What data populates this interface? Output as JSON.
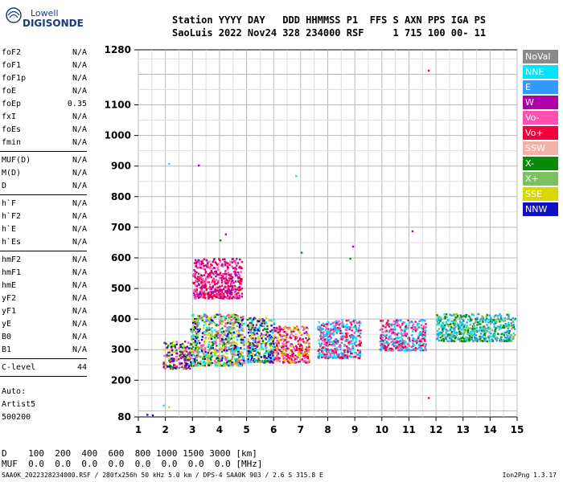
{
  "logo": {
    "line1": "Lowell",
    "line2": "DIGISONDE"
  },
  "header": {
    "labels_line": "Station YYYY DAY   DDD HHMMSS P1  FFS S AXN PPS IGA PS",
    "values_line": "SaoLuis 2022 Nov24 328 234000 RSF     1 715 100 00- 11"
  },
  "params": [
    {
      "name": "foF2",
      "value": "N/A"
    },
    {
      "name": "foF1",
      "value": "N/A"
    },
    {
      "name": "foF1p",
      "value": "N/A"
    },
    {
      "name": "foE",
      "value": "N/A"
    },
    {
      "name": "foEp",
      "value": "0.35"
    },
    {
      "name": "fxI",
      "value": "N/A"
    },
    {
      "name": "foEs",
      "value": "N/A"
    },
    {
      "name": "fmin",
      "value": "N/A"
    },
    {
      "name": "MUF(D)",
      "value": "N/A"
    },
    {
      "name": "M(D)",
      "value": "N/A"
    },
    {
      "name": "D",
      "value": "N/A"
    },
    {
      "name": "h`F",
      "value": "N/A"
    },
    {
      "name": "h`F2",
      "value": "N/A"
    },
    {
      "name": "h`E",
      "value": "N/A"
    },
    {
      "name": "h`Es",
      "value": "N/A"
    },
    {
      "name": "hmF2",
      "value": "N/A"
    },
    {
      "name": "hmF1",
      "value": "N/A"
    },
    {
      "name": "hmE",
      "value": "N/A"
    },
    {
      "name": "yF2",
      "value": "N/A"
    },
    {
      "name": "yF1",
      "value": "N/A"
    },
    {
      "name": "yE",
      "value": "N/A"
    },
    {
      "name": "B0",
      "value": "N/A"
    },
    {
      "name": "B1",
      "value": "N/A"
    },
    {
      "name": "C-level",
      "value": "44"
    }
  ],
  "auto": {
    "line1": "Auto:",
    "line2": "Artist5",
    "line3": "500200"
  },
  "legend": [
    {
      "label": "NoVal",
      "color": "#8a8a8a"
    },
    {
      "label": "NNE",
      "color": "#00e5ff"
    },
    {
      "label": "E",
      "color": "#3399ff"
    },
    {
      "label": "W",
      "color": "#b000a8"
    },
    {
      "label": "Vo-",
      "color": "#ff4fb0"
    },
    {
      "label": "Vo+",
      "color": "#f0003c"
    },
    {
      "label": "SSW",
      "color": "#f4b0a8"
    },
    {
      "label": "X-",
      "color": "#0a8a0a"
    },
    {
      "label": "X+",
      "color": "#7cc060"
    },
    {
      "label": "SSE",
      "color": "#d8d800"
    },
    {
      "label": "NNW",
      "color": "#1010c0"
    }
  ],
  "footer": {
    "d_line": "D    100  200  400  600  800 1000 1500 3000 [km]",
    "muf_line": "MUF  0.0  0.0  0.0  0.0  0.0  0.0  0.0  0.0 [MHz]",
    "file_line": "SAA0K_2022328234000.RSF / 280fx256h 50 kHz 5.0 km / DPS-4 SAA0K 903 / 2.6 S 315.8 E",
    "version": "Ion2Png 1.3.17"
  },
  "chart_data": {
    "type": "scatter",
    "xlim": [
      1,
      15
    ],
    "ylim": [
      80,
      1280
    ],
    "x_ticks": [
      1,
      2,
      3,
      4,
      5,
      6,
      7,
      8,
      9,
      10,
      11,
      12,
      13,
      14,
      15
    ],
    "y_ticks": [
      80,
      200,
      300,
      400,
      500,
      600,
      700,
      800,
      900,
      1000,
      1100,
      1280
    ],
    "grid": true,
    "legend_position": "right",
    "clusters": [
      {
        "x_range": [
          1.9,
          2.9
        ],
        "y_range": [
          240,
          330
        ],
        "colors": [
          "#1010c0",
          "#d8d800",
          "#b000a8",
          "#0a8a0a",
          "#ff4fb0"
        ]
      },
      {
        "x_range": [
          2.9,
          4.9
        ],
        "y_range": [
          250,
          420
        ],
        "colors": [
          "#d8d800",
          "#0a8a0a",
          "#1010c0",
          "#ff4fb0",
          "#00e5ff",
          "#7cc060"
        ]
      },
      {
        "x_range": [
          3.0,
          4.8
        ],
        "y_range": [
          470,
          600
        ],
        "colors": [
          "#b000a8",
          "#ff4fb0",
          "#f0003c"
        ]
      },
      {
        "x_range": [
          5.0,
          6.0
        ],
        "y_range": [
          260,
          410
        ],
        "colors": [
          "#1010c0",
          "#d8d800",
          "#0a8a0a",
          "#00e5ff",
          "#b000a8"
        ]
      },
      {
        "x_range": [
          6.0,
          7.3
        ],
        "y_range": [
          260,
          380
        ],
        "colors": [
          "#ff4fb0",
          "#f0003c",
          "#b000a8",
          "#d8d800"
        ]
      },
      {
        "x_range": [
          7.6,
          9.2
        ],
        "y_range": [
          275,
          400
        ],
        "colors": [
          "#ff4fb0",
          "#f0003c",
          "#00e5ff",
          "#3399ff"
        ]
      },
      {
        "x_range": [
          9.9,
          11.6
        ],
        "y_range": [
          300,
          400
        ],
        "colors": [
          "#f0003c",
          "#00e5ff",
          "#3399ff",
          "#ff4fb0"
        ]
      },
      {
        "x_range": [
          12.0,
          14.9
        ],
        "y_range": [
          330,
          420
        ],
        "colors": [
          "#00e5ff",
          "#3399ff",
          "#7cc060",
          "#0a8a0a"
        ]
      }
    ],
    "outliers": [
      {
        "x": 1.3,
        "y": 90,
        "color": "#1010c0"
      },
      {
        "x": 1.5,
        "y": 88,
        "color": "#1010c0"
      },
      {
        "x": 1.9,
        "y": 120,
        "color": "#00e5ff"
      },
      {
        "x": 2.1,
        "y": 115,
        "color": "#d8d800"
      },
      {
        "x": 2.1,
        "y": 910,
        "color": "#00e5ff"
      },
      {
        "x": 3.2,
        "y": 905,
        "color": "#b000a8"
      },
      {
        "x": 4.2,
        "y": 680,
        "color": "#b000a8"
      },
      {
        "x": 4.0,
        "y": 660,
        "color": "#0a8a0a"
      },
      {
        "x": 6.8,
        "y": 870,
        "color": "#00e5ff"
      },
      {
        "x": 7.0,
        "y": 620,
        "color": "#0a8a0a"
      },
      {
        "x": 8.8,
        "y": 600,
        "color": "#0a8a0a"
      },
      {
        "x": 8.9,
        "y": 640,
        "color": "#b000a8"
      },
      {
        "x": 11.1,
        "y": 690,
        "color": "#b000a8"
      },
      {
        "x": 11.7,
        "y": 1215,
        "color": "#f0003c"
      },
      {
        "x": 11.7,
        "y": 145,
        "color": "#f0003c"
      }
    ]
  }
}
